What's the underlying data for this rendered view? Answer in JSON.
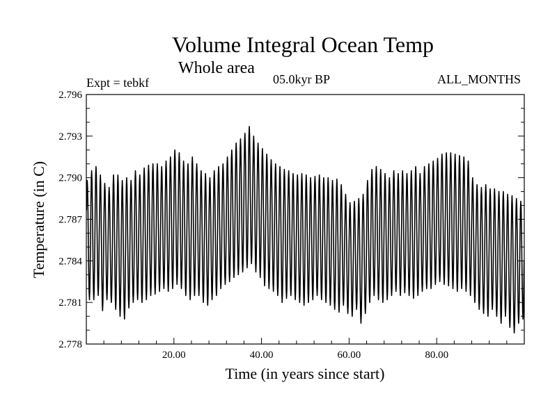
{
  "chart_data": {
    "type": "line",
    "title": "Volume Integral Ocean Temp",
    "subtitle": "Whole area",
    "annotations": {
      "experiment": "Expt = tebkf",
      "period": "05.0kyr BP",
      "months": "ALL_MONTHS"
    },
    "xlabel": "Time (in years since start)",
    "ylabel": "Temperature (in C)",
    "xlim": [
      0,
      100
    ],
    "ylim": [
      2.778,
      2.796
    ],
    "x_ticks": [
      20,
      40,
      60,
      80
    ],
    "x_tick_labels": [
      "20.00",
      "40.00",
      "60.00",
      "80.00"
    ],
    "y_ticks": [
      2.778,
      2.781,
      2.784,
      2.787,
      2.79,
      2.793,
      2.796
    ],
    "y_tick_labels": [
      "2.778",
      "2.781",
      "2.784",
      "2.787",
      "2.790",
      "2.793",
      "2.796"
    ],
    "grid": false,
    "series": [
      {
        "name": "Volume integral ocean temperature",
        "sampling": "monthly",
        "cycle_period_years": 1,
        "annual_maxima": [
          2.7898,
          2.7905,
          2.7908,
          2.7902,
          2.7896,
          2.7893,
          2.7902,
          2.7902,
          2.7898,
          2.79,
          2.7898,
          2.7905,
          2.7902,
          2.7907,
          2.7909,
          2.791,
          2.791,
          2.7908,
          2.7912,
          2.7915,
          2.792,
          2.7918,
          2.7912,
          2.791,
          2.7915,
          2.791,
          2.7905,
          2.7903,
          2.79,
          2.7905,
          2.7908,
          2.791,
          2.7915,
          2.792,
          2.7925,
          2.7928,
          2.7932,
          2.7937,
          2.793,
          2.7925,
          2.7921,
          2.7917,
          2.7913,
          2.791,
          2.7908,
          2.7906,
          2.7905,
          2.7903,
          2.7902,
          2.7903,
          2.7902,
          2.79,
          2.7901,
          2.7902,
          2.79,
          2.79,
          2.7898,
          2.7899,
          2.7895,
          2.7888,
          2.7882,
          2.7883,
          2.7885,
          2.7888,
          2.7898,
          2.7906,
          2.7908,
          2.7906,
          2.7903,
          2.79,
          2.7905,
          2.7903,
          2.7905,
          2.7903,
          2.7905,
          2.7908,
          2.7903,
          2.7908,
          2.791,
          2.7912,
          2.7914,
          2.7917,
          2.7918,
          2.7918,
          2.7917,
          2.7916,
          2.7915,
          2.7912,
          2.79,
          2.7895,
          2.7893,
          2.7895,
          2.7892,
          2.7892,
          2.789,
          2.789,
          2.7888,
          2.7887,
          2.7885,
          2.7883
        ],
        "annual_minima": [
          2.7812,
          2.7812,
          2.7815,
          2.7804,
          2.7812,
          2.781,
          2.7805,
          2.78,
          2.7798,
          2.7806,
          2.781,
          2.7812,
          2.781,
          2.7812,
          2.7815,
          2.7816,
          2.7818,
          2.782,
          2.7818,
          2.782,
          2.7823,
          2.782,
          2.7815,
          2.7812,
          2.7815,
          2.7815,
          2.781,
          2.7808,
          2.7812,
          2.7815,
          2.782,
          2.7823,
          2.7825,
          2.7828,
          2.783,
          2.7832,
          2.7835,
          2.7838,
          2.7832,
          2.7828,
          2.7822,
          2.782,
          2.7818,
          2.7815,
          2.781,
          2.7813,
          2.7815,
          2.7812,
          2.781,
          2.7808,
          2.781,
          2.7812,
          2.7815,
          2.7812,
          2.781,
          2.7808,
          2.7805,
          2.7803,
          2.7808,
          2.7802,
          2.78,
          2.7805,
          2.7795,
          2.7802,
          2.781,
          2.7815,
          2.7812,
          2.781,
          2.7812,
          2.7815,
          2.7818,
          2.7815,
          2.7817,
          2.7815,
          2.7813,
          2.7815,
          2.7818,
          2.782,
          2.782,
          2.7823,
          2.7825,
          2.7823,
          2.7822,
          2.782,
          2.7818,
          2.782,
          2.7818,
          2.7815,
          2.781,
          2.7805,
          2.7802,
          2.78,
          2.7805,
          2.78,
          2.7795,
          2.78,
          2.7792,
          2.7788,
          2.7795,
          2.7798
        ]
      }
    ]
  }
}
